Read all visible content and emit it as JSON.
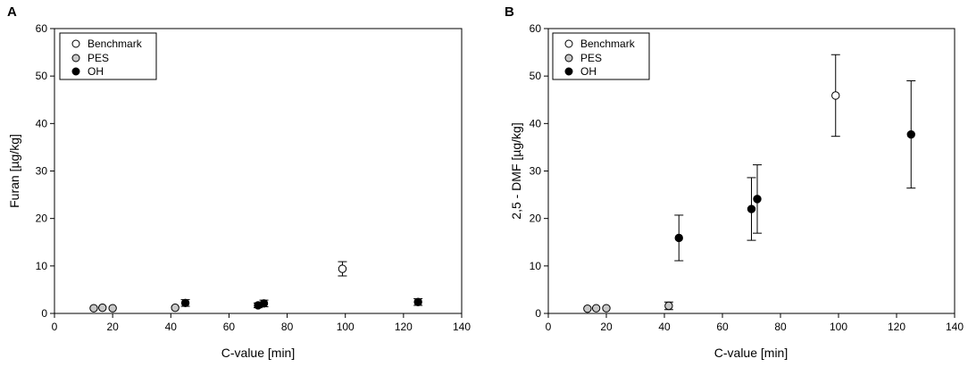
{
  "chart_data": [
    {
      "panel": "A",
      "type": "scatter",
      "title": "",
      "xlabel": "C-value [min]",
      "ylabel": "Furan [µg/kg]",
      "xlim": [
        0,
        140
      ],
      "ylim": [
        0,
        60
      ],
      "xticks": [
        0,
        20,
        40,
        60,
        80,
        100,
        120,
        140
      ],
      "yticks": [
        0,
        10,
        20,
        30,
        40,
        50,
        60
      ],
      "grid": false,
      "legend_position": "top-left",
      "series": [
        {
          "name": "Benchmark",
          "marker": "open-circle",
          "color": "#ffffff",
          "points": [
            {
              "x": 99,
              "y": 9.4,
              "err": 1.5
            }
          ]
        },
        {
          "name": "PES",
          "marker": "grey-circle",
          "color": "#c8c8c8",
          "points": [
            {
              "x": 13.5,
              "y": 1.1,
              "err": 0
            },
            {
              "x": 16.5,
              "y": 1.2,
              "err": 0
            },
            {
              "x": 20,
              "y": 1.1,
              "err": 0
            },
            {
              "x": 41.5,
              "y": 1.2,
              "err": 0
            }
          ]
        },
        {
          "name": "OH",
          "marker": "filled-circle",
          "color": "#000000",
          "points": [
            {
              "x": 45,
              "y": 2.2,
              "err": 0.7
            },
            {
              "x": 70,
              "y": 1.7,
              "err": 0.5
            },
            {
              "x": 72,
              "y": 2.1,
              "err": 0.7
            },
            {
              "x": 125,
              "y": 2.4,
              "err": 0.7
            }
          ]
        }
      ]
    },
    {
      "panel": "B",
      "type": "scatter",
      "title": "",
      "xlabel": "C-value [min]",
      "ylabel": "2,5 - DMF [µg/kg]",
      "xlim": [
        0,
        140
      ],
      "ylim": [
        0,
        60
      ],
      "xticks": [
        0,
        20,
        40,
        60,
        80,
        100,
        120,
        140
      ],
      "yticks": [
        0,
        10,
        20,
        30,
        40,
        50,
        60
      ],
      "grid": false,
      "legend_position": "top-left",
      "series": [
        {
          "name": "Benchmark",
          "marker": "open-circle",
          "color": "#ffffff",
          "points": [
            {
              "x": 99,
              "y": 45.9,
              "err": 8.6
            }
          ]
        },
        {
          "name": "PES",
          "marker": "grey-circle",
          "color": "#c8c8c8",
          "points": [
            {
              "x": 13.5,
              "y": 1.0,
              "err": 0
            },
            {
              "x": 16.5,
              "y": 1.1,
              "err": 0
            },
            {
              "x": 20,
              "y": 1.1,
              "err": 0
            },
            {
              "x": 41.5,
              "y": 1.6,
              "err": 0.8
            }
          ]
        },
        {
          "name": "OH",
          "marker": "filled-circle",
          "color": "#000000",
          "points": [
            {
              "x": 45,
              "y": 15.9,
              "err": 4.8
            },
            {
              "x": 70,
              "y": 22.0,
              "err": 6.6
            },
            {
              "x": 72,
              "y": 24.1,
              "err": 7.2
            },
            {
              "x": 125,
              "y": 37.7,
              "err": 11.3
            }
          ]
        }
      ]
    }
  ]
}
